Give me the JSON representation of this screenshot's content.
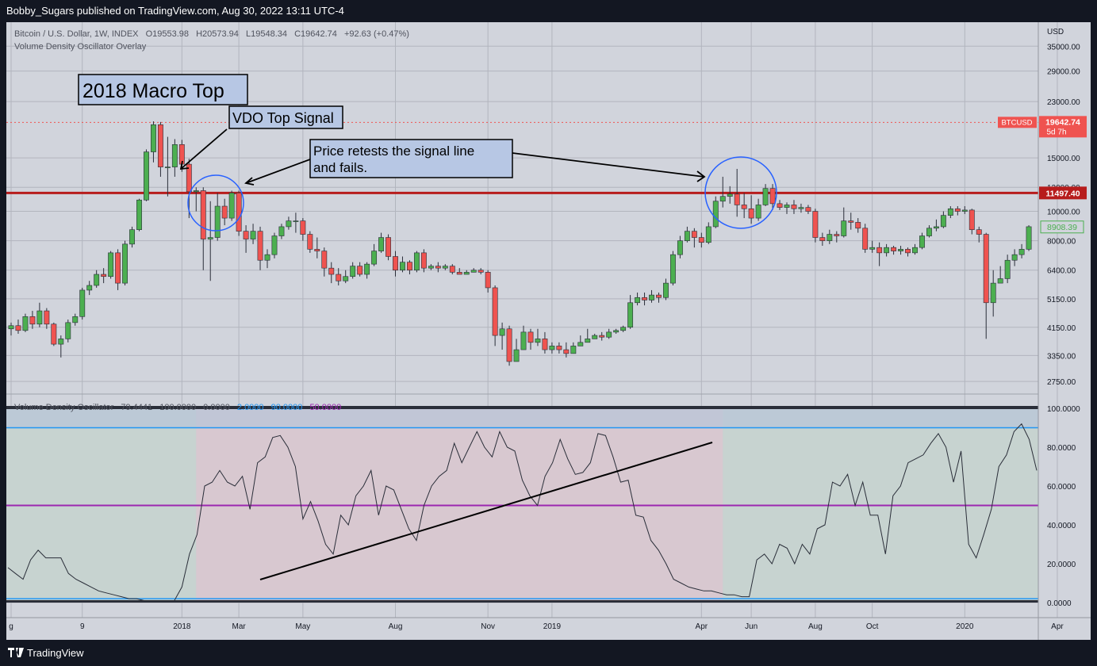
{
  "header": {
    "text": "Bobby_Sugars published on TradingView.com, Aug 30, 2022 13:11 UTC-4"
  },
  "footer": {
    "brand": "TradingView",
    "logo_icon": "tradingview-logo-icon"
  },
  "legend": {
    "symbol": "Bitcoin / U.S. Dollar, 1W, INDEX",
    "o_label": "O",
    "o_value": "19553.98",
    "h_label": "H",
    "h_value": "20573.94",
    "l_label": "L",
    "l_value": "19548.34",
    "c_label": "C",
    "c_value": "19642.74",
    "change": "+92.63 (+0.47%)",
    "overlay": "Volume Density Oscillator Overlay"
  },
  "osc_legend": {
    "name": "Volume Density Oscillator",
    "values": [
      "79.4441",
      "100.0000",
      "0.0000"
    ],
    "extra": [
      {
        "text": "2.0000",
        "color": "#2196f3"
      },
      {
        "text": "90.0000",
        "color": "#2196f3"
      },
      {
        "text": "50.0000",
        "color": "#9c27b0"
      }
    ]
  },
  "annotations": {
    "macro_top": "2018 Macro Top",
    "vdo_signal": "VDO Top Signal",
    "retest_line1": "Price retests the signal line",
    "retest_line2": "and fails."
  },
  "price_axis": {
    "currency": "USD",
    "ticks": [
      "35000.00",
      "29000.00",
      "23000.00",
      "15000.00",
      "12000.00",
      "10000.00",
      "8000.00",
      "6400.00",
      "5150.00",
      "4150.00",
      "3350.00",
      "2750.00"
    ],
    "btc_tag": "BTCUSD",
    "last_price": "19642.74",
    "countdown": "5d 7h",
    "signal_price": "11497.40",
    "green_tag": "8908.39"
  },
  "osc_axis": {
    "ticks": [
      "100.0000",
      "80.0000",
      "60.0000",
      "40.0000",
      "20.0000",
      "0.0000"
    ]
  },
  "time_axis": {
    "labels": [
      "g",
      "9",
      "2018",
      "Mar",
      "May",
      "Aug",
      "Nov",
      "2019",
      "Apr",
      "Jun",
      "Aug",
      "Oct",
      "2020",
      "Apr"
    ]
  },
  "colors": {
    "up": "#4caf50",
    "down": "#ef5350",
    "signal_line": "#b71c1c",
    "circle": "#2962ff",
    "purple": "#9c27b0",
    "blue": "#2196f3"
  },
  "chart_data": [
    {
      "type": "candlestick",
      "title": "Bitcoin / U.S. Dollar, 1W, INDEX",
      "scale": "log",
      "ylim": [
        2500,
        42000
      ],
      "horizontal_lines": [
        {
          "label": "BTCUSD",
          "value": 19642.74,
          "style": "dotted"
        },
        {
          "label": "signal",
          "value": 11497.4,
          "style": "solid"
        }
      ],
      "candles": [
        [
          4100,
          4200,
          3900,
          4300
        ],
        [
          4200,
          4050,
          3950,
          4400
        ],
        [
          4050,
          4500,
          4000,
          4600
        ],
        [
          4500,
          4250,
          4100,
          4700
        ],
        [
          4250,
          4700,
          4150,
          5000
        ],
        [
          4700,
          4250,
          4100,
          4800
        ],
        [
          4250,
          3650,
          3600,
          4300
        ],
        [
          3650,
          3800,
          3300,
          3900
        ],
        [
          3800,
          4300,
          3700,
          4400
        ],
        [
          4300,
          4500,
          4200,
          4600
        ],
        [
          4500,
          5500,
          4400,
          5600
        ],
        [
          5500,
          5700,
          5300,
          5900
        ],
        [
          5700,
          6200,
          5600,
          6400
        ],
        [
          6200,
          6100,
          5800,
          6500
        ],
        [
          6100,
          7300,
          6000,
          7400
        ],
        [
          7300,
          5800,
          5500,
          7500
        ],
        [
          5800,
          7800,
          5700,
          8000
        ],
        [
          7800,
          8700,
          7600,
          8900
        ],
        [
          8700,
          10900,
          8600,
          11000
        ],
        [
          10900,
          15700,
          10800,
          16000
        ],
        [
          15700,
          19300,
          14500,
          19800
        ],
        [
          19300,
          14000,
          13000,
          19700
        ],
        [
          14000,
          14000,
          11200,
          17600
        ],
        [
          14000,
          16600,
          13000,
          17300
        ],
        [
          16600,
          14300,
          13500,
          17200
        ],
        [
          14300,
          11600,
          9500,
          14900
        ],
        [
          11600,
          11700,
          10000,
          12000
        ],
        [
          11700,
          8100,
          6400,
          12000
        ],
        [
          8100,
          8200,
          5900,
          10800
        ],
        [
          8200,
          10400,
          8000,
          11500
        ],
        [
          10400,
          9500,
          9000,
          11000
        ],
        [
          9500,
          11500,
          9300,
          11700
        ],
        [
          11500,
          8600,
          8300,
          11700
        ],
        [
          8600,
          8100,
          7300,
          9000
        ],
        [
          8100,
          8600,
          7800,
          9100
        ],
        [
          8600,
          6900,
          6400,
          8900
        ],
        [
          6900,
          7200,
          6500,
          7500
        ],
        [
          7200,
          8300,
          7000,
          8500
        ],
        [
          8300,
          8900,
          8100,
          9100
        ],
        [
          8900,
          9300,
          8700,
          9600
        ],
        [
          9300,
          9300,
          8500,
          9900
        ],
        [
          9300,
          8400,
          8000,
          9500
        ],
        [
          8400,
          7500,
          7300,
          8600
        ],
        [
          7500,
          7400,
          7000,
          8200
        ],
        [
          7400,
          6500,
          6100,
          7600
        ],
        [
          6500,
          6200,
          5800,
          6800
        ],
        [
          6200,
          5900,
          5700,
          6500
        ],
        [
          5900,
          6100,
          5800,
          6400
        ],
        [
          6100,
          6600,
          6000,
          6800
        ],
        [
          6600,
          6200,
          6100,
          6800
        ],
        [
          6200,
          6700,
          6000,
          6800
        ],
        [
          6700,
          7400,
          6600,
          7800
        ],
        [
          7400,
          8200,
          7300,
          8500
        ],
        [
          8200,
          7100,
          6900,
          8400
        ],
        [
          7100,
          6400,
          6100,
          7400
        ],
        [
          6400,
          6800,
          6300,
          7100
        ],
        [
          6800,
          6400,
          6200,
          6900
        ],
        [
          6400,
          7300,
          6300,
          7400
        ],
        [
          7300,
          6500,
          6300,
          7500
        ],
        [
          6500,
          6600,
          6400,
          6700
        ],
        [
          6600,
          6500,
          6300,
          6800
        ],
        [
          6500,
          6600,
          6400,
          6700
        ],
        [
          6600,
          6300,
          6200,
          6700
        ],
        [
          6300,
          6200,
          6200,
          6500
        ],
        [
          6200,
          6300,
          6200,
          6400
        ],
        [
          6300,
          6400,
          6300,
          6500
        ],
        [
          6400,
          6300,
          6200,
          6500
        ],
        [
          6300,
          5600,
          5400,
          6400
        ],
        [
          5600,
          3900,
          3600,
          5700
        ],
        [
          3900,
          4100,
          3500,
          4300
        ],
        [
          4100,
          3200,
          3100,
          4200
        ],
        [
          3200,
          3500,
          3200,
          3800
        ],
        [
          3500,
          4000,
          3500,
          4200
        ],
        [
          4000,
          3700,
          3500,
          4100
        ],
        [
          3700,
          3800,
          3600,
          4100
        ],
        [
          3800,
          3500,
          3400,
          4000
        ],
        [
          3500,
          3600,
          3400,
          3700
        ],
        [
          3600,
          3500,
          3400,
          3700
        ],
        [
          3500,
          3400,
          3300,
          3700
        ],
        [
          3400,
          3600,
          3400,
          3700
        ],
        [
          3600,
          3700,
          3600,
          3900
        ],
        [
          3700,
          3800,
          3700,
          4100
        ],
        [
          3800,
          3900,
          3800,
          3950
        ],
        [
          3900,
          3850,
          3750,
          4000
        ],
        [
          3850,
          4000,
          3800,
          4100
        ],
        [
          4000,
          4050,
          3950,
          4100
        ],
        [
          4050,
          4150,
          4000,
          4200
        ],
        [
          4150,
          5000,
          4100,
          5300
        ],
        [
          5000,
          5200,
          4900,
          5400
        ],
        [
          5200,
          5100,
          4900,
          5400
        ],
        [
          5100,
          5300,
          5000,
          5500
        ],
        [
          5300,
          5200,
          5000,
          5400
        ],
        [
          5200,
          5800,
          5100,
          6000
        ],
        [
          5800,
          7200,
          5700,
          7400
        ],
        [
          7200,
          8000,
          7000,
          8300
        ],
        [
          8000,
          8600,
          7900,
          8900
        ],
        [
          8600,
          8200,
          7600,
          8800
        ],
        [
          8200,
          7900,
          7600,
          8500
        ],
        [
          7900,
          8900,
          7800,
          9200
        ],
        [
          8900,
          10800,
          8800,
          11200
        ],
        [
          10800,
          11200,
          10300,
          13000
        ],
        [
          11200,
          11400,
          10600,
          12100
        ],
        [
          11400,
          10500,
          9600,
          13800
        ],
        [
          10500,
          10200,
          9500,
          11500
        ],
        [
          10200,
          9500,
          9100,
          11300
        ],
        [
          9500,
          10500,
          9300,
          11000
        ],
        [
          10500,
          11900,
          10400,
          12300
        ],
        [
          11900,
          10600,
          10100,
          12300
        ],
        [
          10600,
          10300,
          10100,
          10900
        ],
        [
          10300,
          10500,
          9800,
          10700
        ],
        [
          10500,
          10200,
          9800,
          10900
        ],
        [
          10200,
          10300,
          9900,
          10600
        ],
        [
          10300,
          10000,
          9800,
          10500
        ],
        [
          10000,
          8200,
          7900,
          10200
        ],
        [
          8200,
          8000,
          7700,
          8500
        ],
        [
          8000,
          8400,
          7800,
          8700
        ],
        [
          8400,
          8300,
          7900,
          8600
        ],
        [
          8300,
          9300,
          8200,
          10300
        ],
        [
          9300,
          9200,
          8700,
          9900
        ],
        [
          9200,
          8800,
          8500,
          9500
        ],
        [
          8800,
          7500,
          7300,
          9100
        ],
        [
          7500,
          7600,
          7300,
          8000
        ],
        [
          7600,
          7300,
          6600,
          7900
        ],
        [
          7300,
          7600,
          7100,
          7800
        ],
        [
          7600,
          7400,
          7200,
          7700
        ],
        [
          7400,
          7500,
          7200,
          7700
        ],
        [
          7500,
          7300,
          7100,
          7600
        ],
        [
          7300,
          7600,
          7200,
          7800
        ],
        [
          7600,
          8300,
          7500,
          8500
        ],
        [
          8300,
          8800,
          8200,
          9000
        ],
        [
          8800,
          8900,
          8600,
          9400
        ],
        [
          8900,
          9700,
          8800,
          10000
        ],
        [
          9700,
          10200,
          9500,
          10400
        ],
        [
          10200,
          10000,
          9700,
          10400
        ],
        [
          10000,
          10100,
          9800,
          10400
        ],
        [
          10100,
          8700,
          8400,
          10200
        ],
        [
          8700,
          8400,
          7900,
          8900
        ],
        [
          8400,
          5000,
          3800,
          8500
        ],
        [
          5000,
          5800,
          4500,
          6400
        ],
        [
          5800,
          6000,
          5900,
          6600
        ],
        [
          6000,
          6900,
          5800,
          7200
        ],
        [
          6900,
          7200,
          6600,
          7500
        ],
        [
          7200,
          7500,
          7000,
          7800
        ],
        [
          7500,
          8900,
          7400,
          9000
        ]
      ]
    },
    {
      "type": "line",
      "title": "Volume Density Oscillator",
      "ylim": [
        0,
        100
      ],
      "levels": [
        {
          "value": 2,
          "color": "#2196f3"
        },
        {
          "value": 90,
          "color": "#2196f3"
        },
        {
          "value": 50,
          "color": "#9c27b0"
        }
      ],
      "values": [
        18,
        15,
        12,
        22,
        27,
        23,
        23,
        23,
        15,
        12,
        10,
        8,
        6,
        5,
        4,
        3,
        2,
        2,
        1,
        1,
        1,
        1,
        1,
        8,
        25,
        35,
        60,
        62,
        68,
        62,
        60,
        65,
        48,
        72,
        75,
        85,
        86,
        80,
        70,
        43,
        52,
        42,
        30,
        25,
        45,
        40,
        55,
        60,
        68,
        45,
        60,
        58,
        48,
        38,
        32,
        50,
        60,
        65,
        68,
        82,
        72,
        80,
        88,
        80,
        75,
        88,
        80,
        78,
        63,
        55,
        50,
        65,
        72,
        84,
        74,
        66,
        67,
        72,
        87,
        86,
        75,
        62,
        63,
        45,
        44,
        32,
        27,
        20,
        12,
        10,
        8,
        7,
        6,
        6,
        5,
        4,
        4,
        3,
        3,
        22,
        25,
        20,
        30,
        28,
        20,
        30,
        25,
        38,
        40,
        62,
        60,
        66,
        50,
        62,
        45,
        45,
        25,
        55,
        60,
        72,
        74,
        76,
        82,
        87,
        80,
        62,
        78,
        30,
        23,
        35,
        48,
        70,
        76,
        88,
        92,
        84,
        68
      ]
    }
  ]
}
